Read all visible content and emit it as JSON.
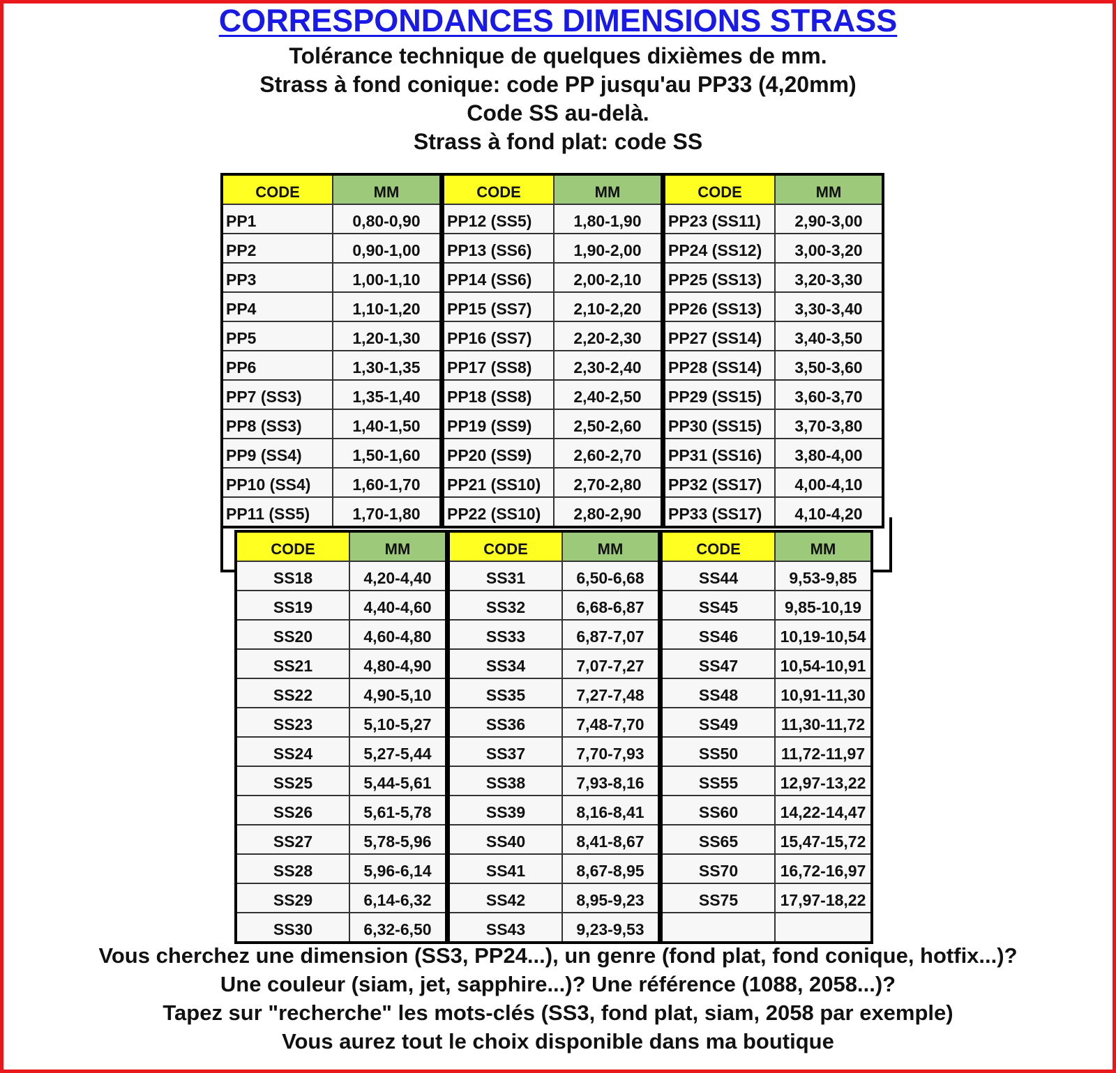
{
  "title": "CORRESPONDANCES DIMENSIONS STRASS",
  "subtitle_lines": [
    "Tolérance technique de quelques dixièmes de mm.",
    "Strass à fond conique: code PP jusqu'au PP33 (4,20mm)",
    "Code SS au-delà.",
    "Strass à fond plat: code SS"
  ],
  "headers": {
    "code": "CODE",
    "mm": "MM"
  },
  "colors": {
    "title": "#1a1ae6",
    "border": "#e8181c",
    "code_header": "#ffff22",
    "mm_header": "#9dc97a"
  },
  "pp_table": [
    [
      [
        "PP1",
        "0,80-0,90"
      ],
      [
        "PP2",
        "0,90-1,00"
      ],
      [
        "PP3",
        "1,00-1,10"
      ],
      [
        "PP4",
        "1,10-1,20"
      ],
      [
        "PP5",
        "1,20-1,30"
      ],
      [
        "PP6",
        "1,30-1,35"
      ],
      [
        "PP7 (SS3)",
        "1,35-1,40"
      ],
      [
        "PP8 (SS3)",
        "1,40-1,50"
      ],
      [
        "PP9 (SS4)",
        "1,50-1,60"
      ],
      [
        "PP10 (SS4)",
        "1,60-1,70"
      ],
      [
        "PP11 (SS5)",
        "1,70-1,80"
      ]
    ],
    [
      [
        "PP12 (SS5)",
        "1,80-1,90"
      ],
      [
        "PP13 (SS6)",
        "1,90-2,00"
      ],
      [
        "PP14 (SS6)",
        "2,00-2,10"
      ],
      [
        "PP15 (SS7)",
        "2,10-2,20"
      ],
      [
        "PP16 (SS7)",
        "2,20-2,30"
      ],
      [
        "PP17 (SS8)",
        "2,30-2,40"
      ],
      [
        "PP18 (SS8)",
        "2,40-2,50"
      ],
      [
        "PP19 (SS9)",
        "2,50-2,60"
      ],
      [
        "PP20 (SS9)",
        "2,60-2,70"
      ],
      [
        "PP21 (SS10)",
        "2,70-2,80"
      ],
      [
        "PP22 (SS10)",
        "2,80-2,90"
      ]
    ],
    [
      [
        "PP23 (SS11)",
        "2,90-3,00"
      ],
      [
        "PP24 (SS12)",
        "3,00-3,20"
      ],
      [
        "PP25 (SS13)",
        "3,20-3,30"
      ],
      [
        "PP26 (SS13)",
        "3,30-3,40"
      ],
      [
        "PP27 (SS14)",
        "3,40-3,50"
      ],
      [
        "PP28 (SS14)",
        "3,50-3,60"
      ],
      [
        "PP29 (SS15)",
        "3,60-3,70"
      ],
      [
        "PP30 (SS15)",
        "3,70-3,80"
      ],
      [
        "PP31 (SS16)",
        "3,80-4,00"
      ],
      [
        "PP32 (SS17)",
        "4,00-4,10"
      ],
      [
        "PP33 (SS17)",
        "4,10-4,20"
      ]
    ]
  ],
  "ss_table": [
    [
      [
        "SS18",
        "4,20-4,40"
      ],
      [
        "SS19",
        "4,40-4,60"
      ],
      [
        "SS20",
        "4,60-4,80"
      ],
      [
        "SS21",
        "4,80-4,90"
      ],
      [
        "SS22",
        "4,90-5,10"
      ],
      [
        "SS23",
        "5,10-5,27"
      ],
      [
        "SS24",
        "5,27-5,44"
      ],
      [
        "SS25",
        "5,44-5,61"
      ],
      [
        "SS26",
        "5,61-5,78"
      ],
      [
        "SS27",
        "5,78-5,96"
      ],
      [
        "SS28",
        "5,96-6,14"
      ],
      [
        "SS29",
        "6,14-6,32"
      ],
      [
        "SS30",
        "6,32-6,50"
      ]
    ],
    [
      [
        "SS31",
        "6,50-6,68"
      ],
      [
        "SS32",
        "6,68-6,87"
      ],
      [
        "SS33",
        "6,87-7,07"
      ],
      [
        "SS34",
        "7,07-7,27"
      ],
      [
        "SS35",
        "7,27-7,48"
      ],
      [
        "SS36",
        "7,48-7,70"
      ],
      [
        "SS37",
        "7,70-7,93"
      ],
      [
        "SS38",
        "7,93-8,16"
      ],
      [
        "SS39",
        "8,16-8,41"
      ],
      [
        "SS40",
        "8,41-8,67"
      ],
      [
        "SS41",
        "8,67-8,95"
      ],
      [
        "SS42",
        "8,95-9,23"
      ],
      [
        "SS43",
        "9,23-9,53"
      ]
    ],
    [
      [
        "SS44",
        "9,53-9,85"
      ],
      [
        "SS45",
        "9,85-10,19"
      ],
      [
        "SS46",
        "10,19-10,54"
      ],
      [
        "SS47",
        "10,54-10,91"
      ],
      [
        "SS48",
        "10,91-11,30"
      ],
      [
        "SS49",
        "11,30-11,72"
      ],
      [
        "SS50",
        "11,72-11,97"
      ],
      [
        "SS55",
        "12,97-13,22"
      ],
      [
        "SS60",
        "14,22-14,47"
      ],
      [
        "SS65",
        "15,47-15,72"
      ],
      [
        "SS70",
        "16,72-16,97"
      ],
      [
        "SS75",
        "17,97-18,22"
      ],
      [
        "",
        ""
      ]
    ]
  ],
  "footer_lines": [
    "Vous cherchez une dimension (SS3, PP24...), un genre (fond plat, fond conique, hotfix...)?",
    "Une couleur (siam, jet, sapphire...)? Une référence (1088, 2058...)?",
    "Tapez sur \"recherche\" les mots-clés (SS3, fond plat, siam, 2058 par exemple)",
    "Vous aurez tout le choix disponible dans ma boutique"
  ]
}
